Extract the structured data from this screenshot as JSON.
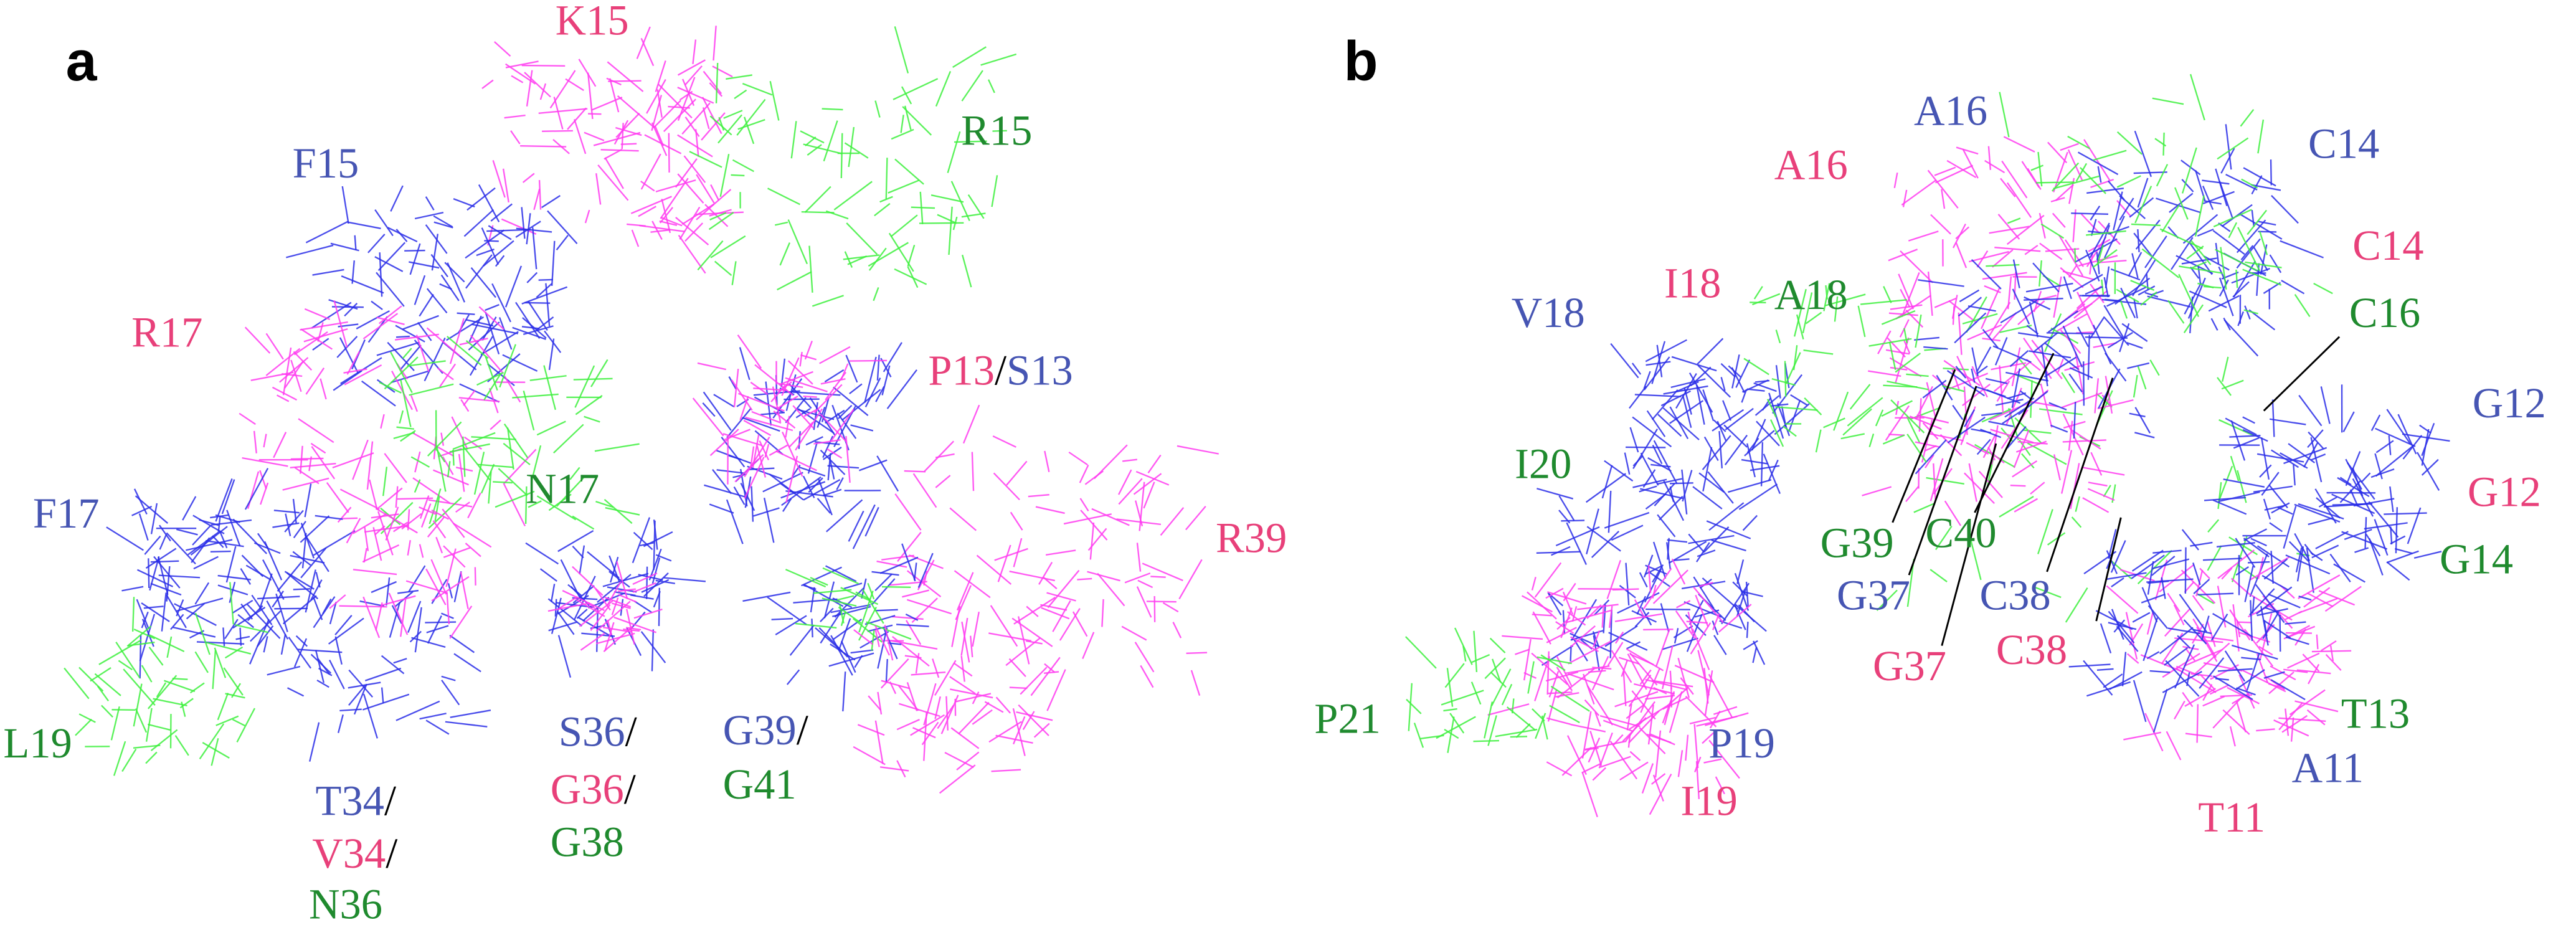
{
  "panels": [
    {
      "label": "a",
      "labels": [
        {
          "parts": [
            {
              "text": "K15",
              "color": "#e8407a"
            }
          ]
        },
        {
          "parts": [
            {
              "text": "R15",
              "color": "#1f8a2e"
            }
          ]
        },
        {
          "parts": [
            {
              "text": "F15",
              "color": "#4655b3"
            }
          ]
        },
        {
          "parts": [
            {
              "text": "R17",
              "color": "#e8407a"
            }
          ]
        },
        {
          "parts": [
            {
              "text": "P13",
              "color": "#e8407a"
            },
            {
              "text": "/",
              "color": "#000000"
            },
            {
              "text": "S13",
              "color": "#4655b3"
            }
          ]
        },
        {
          "parts": [
            {
              "text": "F17",
              "color": "#4655b3"
            }
          ]
        },
        {
          "parts": [
            {
              "text": "N17",
              "color": "#1f8a2e"
            }
          ]
        },
        {
          "parts": [
            {
              "text": "R39",
              "color": "#e8407a"
            }
          ]
        },
        {
          "parts": [
            {
              "text": "L19",
              "color": "#1f8a2e"
            }
          ]
        },
        {
          "parts": [
            {
              "text": "S36",
              "color": "#4655b3"
            },
            {
              "text": "/",
              "color": "#000000"
            }
          ]
        },
        {
          "parts": [
            {
              "text": "G36",
              "color": "#e8407a"
            },
            {
              "text": "/",
              "color": "#000000"
            }
          ]
        },
        {
          "parts": [
            {
              "text": "G38",
              "color": "#1f8a2e"
            }
          ]
        },
        {
          "parts": [
            {
              "text": "G39",
              "color": "#4655b3"
            },
            {
              "text": "/",
              "color": "#000000"
            }
          ]
        },
        {
          "parts": [
            {
              "text": "G41",
              "color": "#1f8a2e"
            }
          ]
        },
        {
          "parts": [
            {
              "text": "T34",
              "color": "#4655b3"
            },
            {
              "text": "/",
              "color": "#000000"
            }
          ]
        },
        {
          "parts": [
            {
              "text": "V34",
              "color": "#e8407a"
            },
            {
              "text": "/",
              "color": "#000000"
            }
          ]
        },
        {
          "parts": [
            {
              "text": "N36",
              "color": "#1f8a2e"
            }
          ]
        }
      ]
    },
    {
      "label": "b",
      "labels": [
        {
          "parts": [
            {
              "text": "A16",
              "color": "#4655b3"
            }
          ]
        },
        {
          "parts": [
            {
              "text": "C14",
              "color": "#4655b3"
            }
          ]
        },
        {
          "parts": [
            {
              "text": "A16",
              "color": "#e8407a"
            }
          ]
        },
        {
          "parts": [
            {
              "text": "C14",
              "color": "#e8407a"
            }
          ]
        },
        {
          "parts": [
            {
              "text": "I18",
              "color": "#e8407a"
            }
          ]
        },
        {
          "parts": [
            {
              "text": "A18",
              "color": "#1f8a2e"
            }
          ]
        },
        {
          "parts": [
            {
              "text": "V18",
              "color": "#4655b3"
            }
          ]
        },
        {
          "parts": [
            {
              "text": "C16",
              "color": "#1f8a2e"
            }
          ]
        },
        {
          "parts": [
            {
              "text": "G12",
              "color": "#4655b3"
            }
          ]
        },
        {
          "parts": [
            {
              "text": "I20",
              "color": "#1f8a2e"
            }
          ]
        },
        {
          "parts": [
            {
              "text": "G12",
              "color": "#e8407a"
            }
          ]
        },
        {
          "parts": [
            {
              "text": "C40",
              "color": "#1f8a2e"
            }
          ]
        },
        {
          "parts": [
            {
              "text": "G39",
              "color": "#1f8a2e"
            }
          ]
        },
        {
          "parts": [
            {
              "text": "G14",
              "color": "#1f8a2e"
            }
          ]
        },
        {
          "parts": [
            {
              "text": "G37",
              "color": "#4655b3"
            }
          ]
        },
        {
          "parts": [
            {
              "text": "C38",
              "color": "#4655b3"
            }
          ]
        },
        {
          "parts": [
            {
              "text": "G37",
              "color": "#e8407a"
            }
          ]
        },
        {
          "parts": [
            {
              "text": "C38",
              "color": "#e8407a"
            }
          ]
        },
        {
          "parts": [
            {
              "text": "T13",
              "color": "#1f8a2e"
            }
          ]
        },
        {
          "parts": [
            {
              "text": "P21",
              "color": "#1f8a2e"
            }
          ]
        },
        {
          "parts": [
            {
              "text": "P19",
              "color": "#4655b3"
            }
          ]
        },
        {
          "parts": [
            {
              "text": "A11",
              "color": "#4655b3"
            }
          ]
        },
        {
          "parts": [
            {
              "text": "I19",
              "color": "#e8407a"
            }
          ]
        },
        {
          "parts": [
            {
              "text": "T11",
              "color": "#e8407a"
            }
          ]
        }
      ]
    }
  ]
}
